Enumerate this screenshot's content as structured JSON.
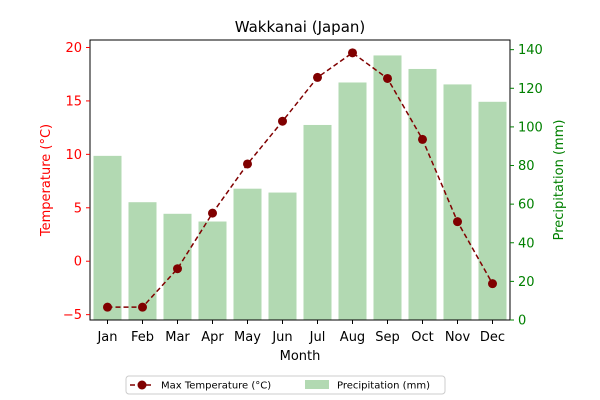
{
  "chart_data": {
    "type": "bar+line",
    "title": "Wakkanai (Japan)",
    "xlabel": "Month",
    "ylabel_left": "Temperature (°C)",
    "ylabel_right": "Precipitation (mm)",
    "categories": [
      "Jan",
      "Feb",
      "Mar",
      "Apr",
      "May",
      "Jun",
      "Jul",
      "Aug",
      "Sep",
      "Oct",
      "Nov",
      "Dec"
    ],
    "series": [
      {
        "name": "Max Temperature (°C)",
        "type": "line",
        "axis": "left",
        "color": "#800000",
        "style": "dashed with circle markers",
        "values": [
          -4.3,
          -4.3,
          -0.7,
          4.5,
          9.1,
          13.1,
          17.2,
          19.5,
          17.1,
          11.4,
          3.7,
          -2.1
        ]
      },
      {
        "name": "Precipitation (mm)",
        "type": "bar",
        "axis": "right",
        "color": "#b2d9b2",
        "values": [
          85,
          61,
          55,
          51,
          68,
          66,
          101,
          123,
          137,
          130,
          122,
          113
        ]
      }
    ],
    "ylim_left": [
      -5.5,
      20.7
    ],
    "ylim_right": [
      0,
      145
    ],
    "yticks_left": [
      "−5",
      "0",
      "5",
      "10",
      "15",
      "20"
    ],
    "yticks_right": [
      "0",
      "20",
      "40",
      "60",
      "80",
      "100",
      "120",
      "140"
    ],
    "left_axis_color": "#ff0000",
    "right_axis_color": "#008000",
    "grid": false,
    "legend_position": "bottom-center"
  }
}
